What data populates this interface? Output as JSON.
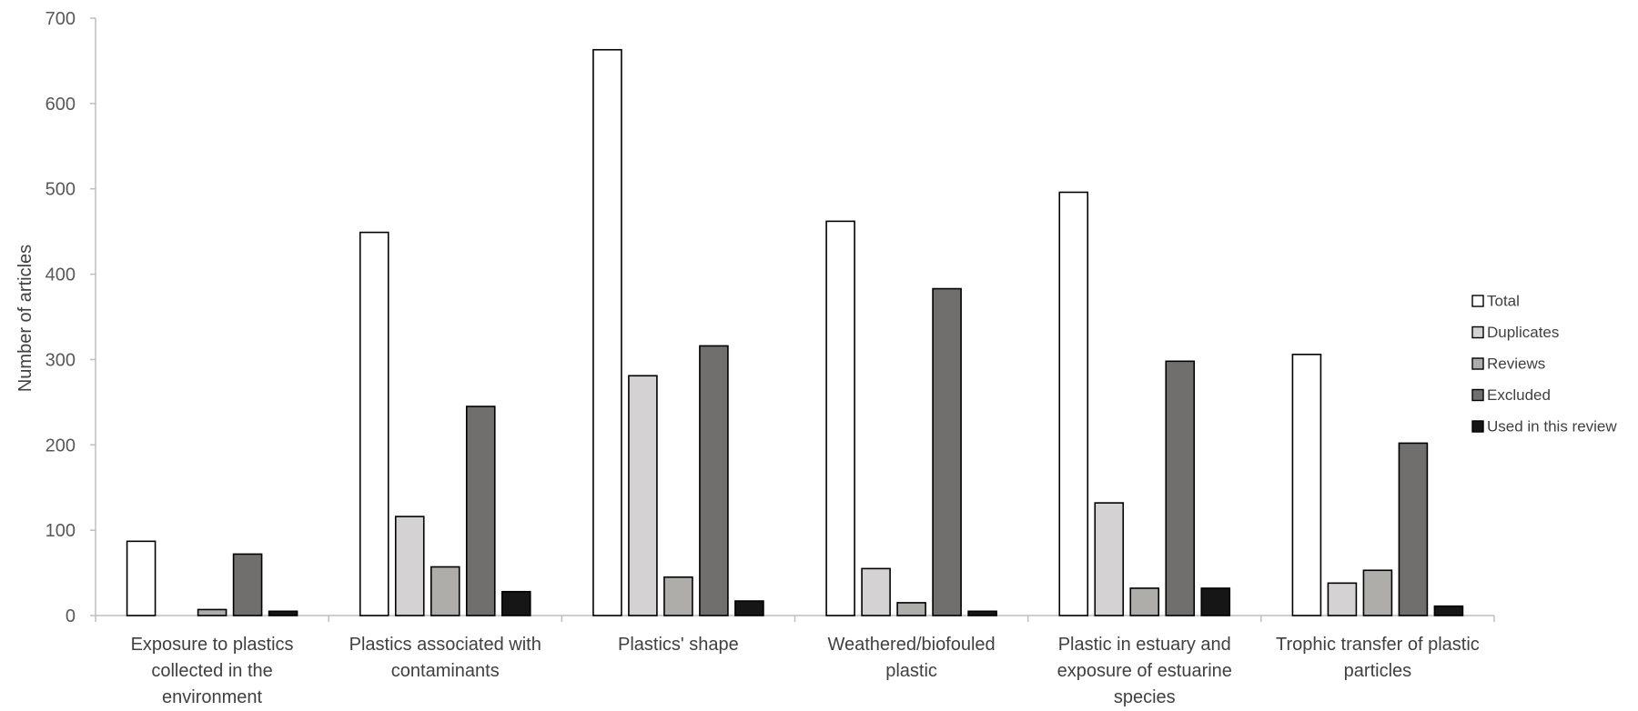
{
  "chart_data": {
    "type": "bar",
    "title": "",
    "xlabel": "",
    "ylabel": "Number of articles",
    "ylim": [
      0,
      700
    ],
    "yticks": [
      0,
      100,
      200,
      300,
      400,
      500,
      600,
      700
    ],
    "grid": false,
    "legend_position": "right",
    "categories": [
      [
        "Exposure to plastics",
        "collected in the",
        "environment"
      ],
      [
        "Plastics associated with",
        "contaminants"
      ],
      [
        "Plastics' shape"
      ],
      [
        "Weathered/biofouled",
        "plastic"
      ],
      [
        "Plastic in estuary and",
        "exposure of estuarine",
        "species"
      ],
      [
        "Trophic transfer of plastic",
        "particles"
      ]
    ],
    "series": [
      {
        "name": "Total",
        "color": "#ffffff",
        "values": [
          87,
          449,
          663,
          462,
          496,
          306
        ]
      },
      {
        "name": "Duplicates",
        "color": "#d4d2d3",
        "values": [
          0,
          116,
          281,
          55,
          132,
          38
        ]
      },
      {
        "name": "Reviews",
        "color": "#afadaa",
        "values": [
          7,
          57,
          45,
          15,
          32,
          53
        ]
      },
      {
        "name": "Excluded",
        "color": "#716f6d",
        "values": [
          72,
          245,
          316,
          383,
          298,
          202
        ]
      },
      {
        "name": "Used in this review",
        "color": "#161616",
        "values": [
          5,
          28,
          17,
          5,
          32,
          11
        ]
      }
    ]
  }
}
